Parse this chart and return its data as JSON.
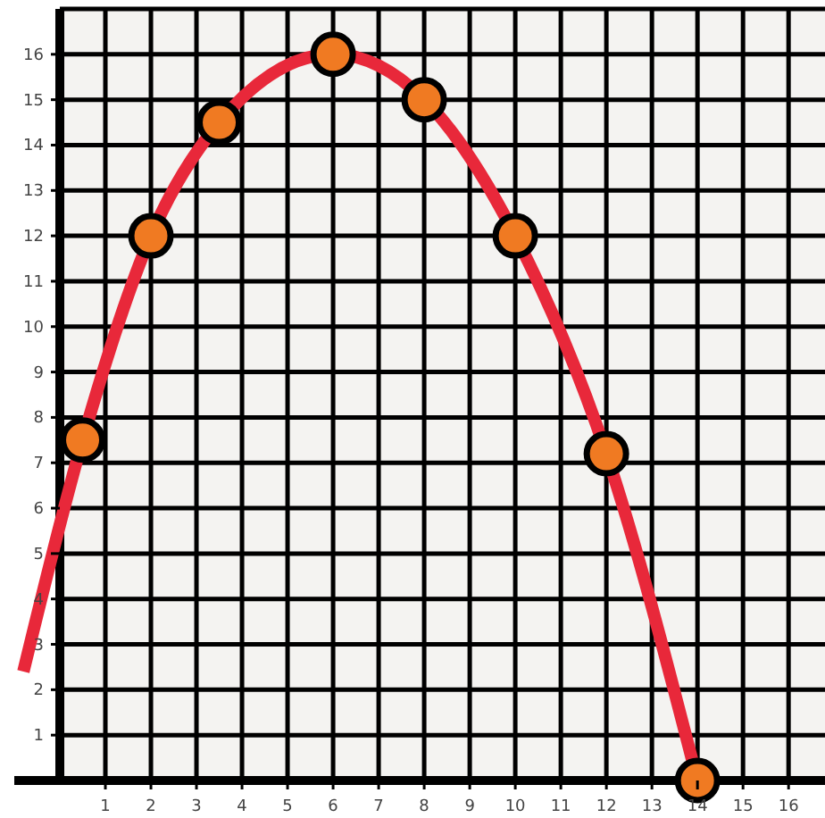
{
  "chart_data": {
    "type": "scatter",
    "xlim": [
      -1,
      16.8
    ],
    "ylim": [
      0,
      17
    ],
    "xticks": [
      1,
      2,
      3,
      4,
      5,
      6,
      7,
      8,
      9,
      10,
      11,
      12,
      13,
      14,
      15,
      16
    ],
    "yticks": [
      1,
      2,
      3,
      4,
      5,
      6,
      7,
      8,
      9,
      10,
      11,
      12,
      13,
      14,
      15,
      16
    ],
    "grid": true,
    "series": [
      {
        "type": "line",
        "color": "#e8283a",
        "marker": "none",
        "line_style": "solid",
        "x": [
          -0.8,
          0.5,
          2,
          3.5,
          6,
          8,
          10,
          12,
          14
        ],
        "values": [
          2.4,
          7.5,
          12,
          14.5,
          16,
          15,
          12,
          7.2,
          0
        ]
      },
      {
        "color": "#f07a22",
        "marker": "circle",
        "x": [
          0.5,
          2,
          3.5,
          6,
          8,
          10,
          12,
          14
        ],
        "values": [
          7.5,
          12,
          14.5,
          16,
          15,
          12,
          7.2,
          0
        ]
      }
    ]
  }
}
